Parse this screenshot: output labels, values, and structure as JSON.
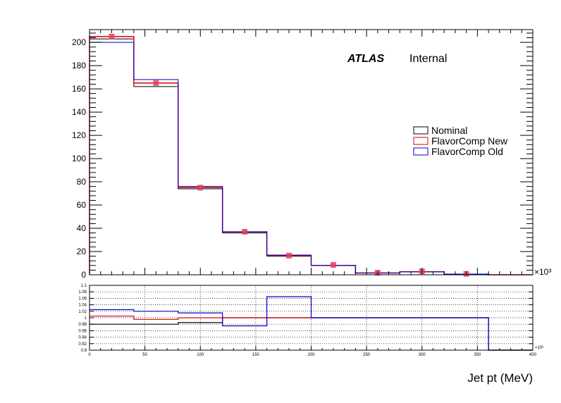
{
  "chart_data": [
    {
      "type": "histogram",
      "panel": "main",
      "x_edges": [
        0,
        40,
        80,
        120,
        160,
        200,
        240,
        280,
        320,
        360,
        400
      ],
      "xlim": [
        0,
        400
      ],
      "ylim": [
        0,
        211
      ],
      "y_ticks": [
        0,
        20,
        40,
        60,
        80,
        100,
        120,
        140,
        160,
        180,
        200
      ],
      "y_scale_label": "×10³",
      "atlas_label": "ATLAS",
      "atlas_status": "Internal",
      "legend_position": "right",
      "series": [
        {
          "name": "Nominal",
          "color": "#000000",
          "values": [
            203,
            162,
            74,
            36,
            16,
            8,
            1.5,
            2.5,
            0.5,
            0
          ]
        },
        {
          "name": "FlavorComp New",
          "color": "#dd0000",
          "values": [
            205,
            165,
            75,
            37,
            16.5,
            8,
            1.5,
            2.6,
            0.4,
            0
          ]
        },
        {
          "name": "FlavorComp Old",
          "color": "#0000cc",
          "values": [
            200,
            168,
            76,
            37,
            17,
            8.2,
            1.6,
            2.5,
            0.6,
            0
          ]
        }
      ],
      "markers": {
        "color": "#e0405a",
        "x": [
          20,
          60,
          100,
          140,
          180,
          220,
          260,
          300,
          340
        ],
        "y": [
          205,
          165,
          75,
          37,
          16.5,
          8.5,
          1.8,
          3.0,
          0.8
        ]
      }
    },
    {
      "type": "histogram",
      "panel": "ratio",
      "x_edges": [
        0,
        40,
        80,
        120,
        160,
        200,
        240,
        280,
        320,
        360,
        400
      ],
      "xlim": [
        0,
        400
      ],
      "ylim": [
        0.9,
        1.1
      ],
      "x_ticks": [
        0,
        50,
        100,
        150,
        200,
        250,
        300,
        350,
        400
      ],
      "y_ticks": [
        "0.9",
        "0.92",
        "0.94",
        "0.96",
        "0.98",
        "1",
        "1.02",
        "1.04",
        "1.06",
        "1.08",
        "1.1"
      ],
      "x_scale_label": "×10³",
      "xlabel": "Jet pt (MeV)",
      "grid": true,
      "series": [
        {
          "name": "Nominal",
          "color": "#000000",
          "values": [
            0.98,
            0.98,
            0.985,
            1.0,
            1.0,
            1.0,
            1.0,
            1.0,
            1.0,
            0.9
          ]
        },
        {
          "name": "FlavorComp New",
          "color": "#dd0000",
          "values": [
            1.005,
            0.995,
            1.0,
            1.0,
            1.0,
            1.0,
            1.0,
            1.0,
            1.0,
            0.9
          ]
        },
        {
          "name": "FlavorComp Old",
          "color": "#0000cc",
          "values": [
            1.025,
            1.02,
            1.015,
            0.975,
            1.065,
            1.0,
            1.0,
            1.0,
            1.0,
            0.9
          ]
        }
      ]
    }
  ]
}
